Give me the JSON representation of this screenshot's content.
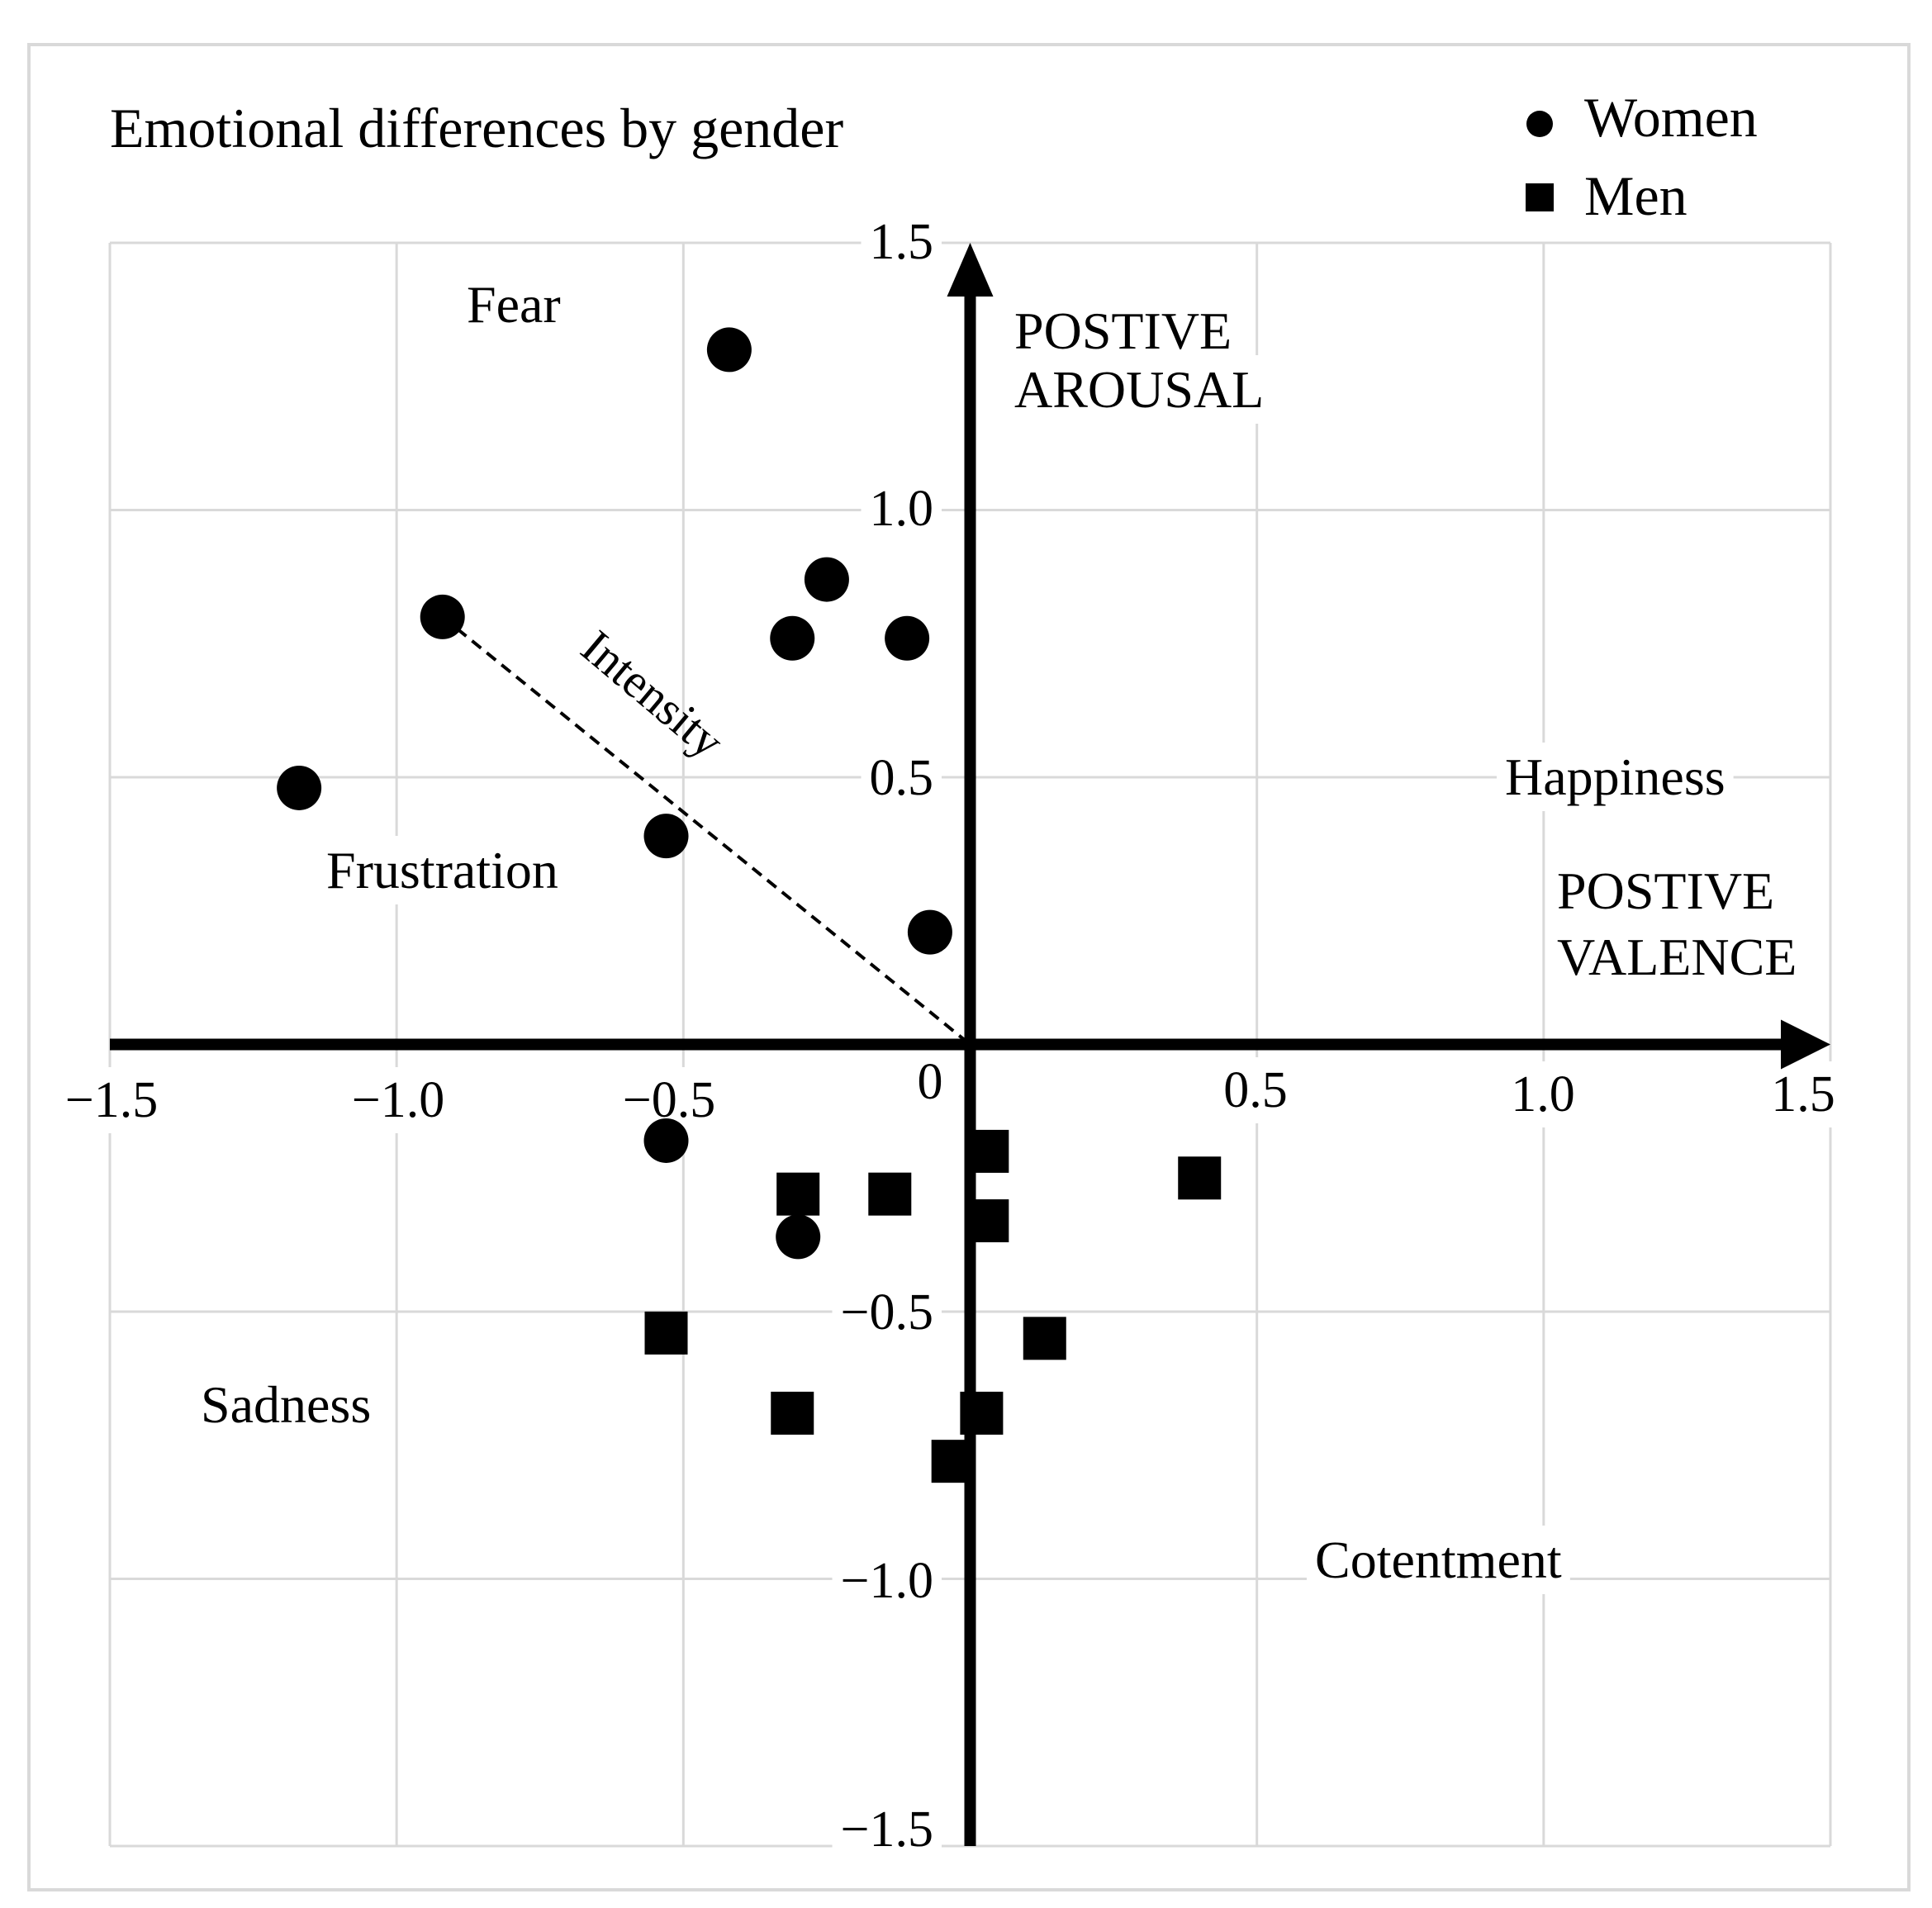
{
  "chart_data": {
    "type": "scatter",
    "title": "Emotional differences by gender",
    "xlim": [
      -1.5,
      1.5
    ],
    "ylim": [
      -1.5,
      1.5
    ],
    "grid": true,
    "x_ticks": [
      "−1.5",
      "−1.0",
      "−0.5",
      "0",
      "0.5",
      "1.0",
      "1.5"
    ],
    "y_ticks": [
      "1.5",
      "1.0",
      "0.5",
      "−0.5",
      "−1.0",
      "−1.5"
    ],
    "x_axis_label": [
      "POSTIVE",
      "VALENCE"
    ],
    "y_axis_label": [
      "POSTIVE",
      "AROUSAL"
    ],
    "legend": {
      "position": "top-right",
      "entries": [
        "Women",
        "Men"
      ]
    },
    "region_labels": {
      "fear": "Fear",
      "frustration": "Frustration",
      "sadness": "Sadness",
      "happiness": "Happiness",
      "contentment": "Cotentment",
      "intensity": "Intensity"
    },
    "intensity_line": {
      "from": [
        -0.92,
        0.8
      ],
      "to": [
        0.0,
        0.0
      ]
    },
    "series": [
      {
        "name": "Women",
        "marker": "circle",
        "points": [
          [
            -0.42,
            1.3
          ],
          [
            -0.25,
            0.87
          ],
          [
            -0.31,
            0.76
          ],
          [
            -0.11,
            0.76
          ],
          [
            -0.92,
            0.8
          ],
          [
            -1.17,
            0.48
          ],
          [
            -0.53,
            0.39
          ],
          [
            -0.07,
            0.21
          ],
          [
            -0.53,
            -0.18
          ],
          [
            -0.3,
            -0.36
          ]
        ]
      },
      {
        "name": "Men",
        "marker": "square",
        "points": [
          [
            0.03,
            -0.2
          ],
          [
            -0.3,
            -0.28
          ],
          [
            -0.14,
            -0.28
          ],
          [
            0.03,
            -0.33
          ],
          [
            0.4,
            -0.25
          ],
          [
            -0.53,
            -0.54
          ],
          [
            0.13,
            -0.55
          ],
          [
            -0.31,
            -0.69
          ],
          [
            0.02,
            -0.69
          ],
          [
            -0.03,
            -0.78
          ]
        ]
      }
    ]
  }
}
